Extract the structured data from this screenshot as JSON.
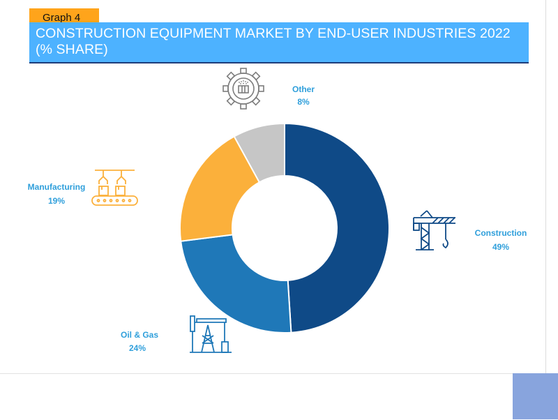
{
  "graph_tag": "Graph 4",
  "title": "CONSTRUCTION EQUIPMENT MARKET BY END-USER INDUSTRIES 2022 (% SHARE)",
  "colors": {
    "tag_bg": "#ffa41b",
    "title_bg": "#4db2ff",
    "label": "#2f9fdb",
    "corner_block": "#88a4dd"
  },
  "chart_data": {
    "type": "pie",
    "donut": true,
    "title": "CONSTRUCTION EQUIPMENT MARKET BY END-USER INDUSTRIES 2022 (% SHARE)",
    "slices": [
      {
        "name": "Construction",
        "value": 49,
        "label": "49%",
        "color": "#0f4a87",
        "icon": "tower-crane-icon"
      },
      {
        "name": "Oil & Gas",
        "value": 24,
        "label": "24%",
        "color": "#1f78b8",
        "icon": "oil-pump-icon"
      },
      {
        "name": "Manufacturing",
        "value": 19,
        "label": "19%",
        "color": "#fbb03b",
        "icon": "conveyor-robot-arm-icon"
      },
      {
        "name": "Other",
        "value": 8,
        "label": "8%",
        "color": "#c6c6c6",
        "icon": "gear-factory-icon"
      }
    ]
  }
}
